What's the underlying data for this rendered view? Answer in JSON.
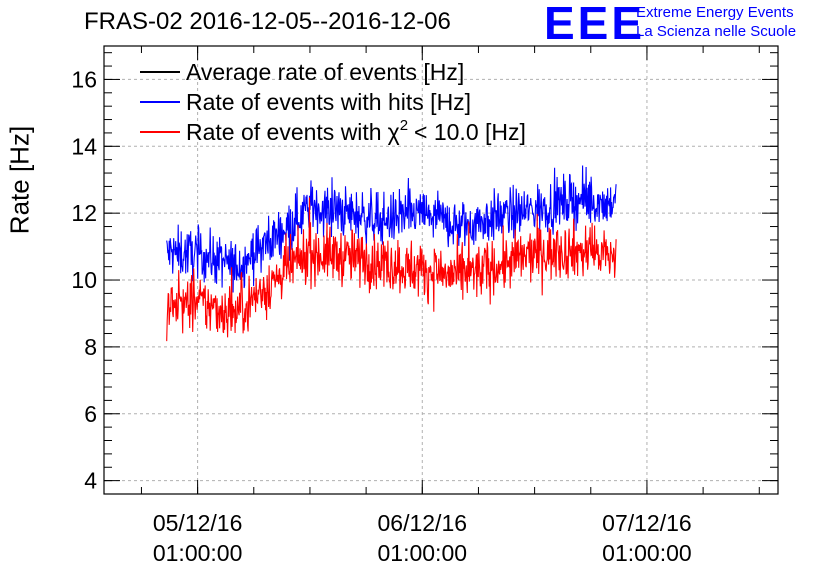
{
  "header": {
    "title": "FRAS-02 2016-12-05--2016-12-06",
    "logo_text": "EEE",
    "org_line1": "Extreme Energy Events",
    "org_line2": "La Scienza nelle Scuole"
  },
  "colors": {
    "average": "#000000",
    "hits": "#0000ff",
    "chi2": "#ff0000",
    "grid": "#b0b0b0",
    "logo": "#0000ff"
  },
  "chart_data": {
    "type": "line",
    "title": "FRAS-02 2016-12-05--2016-12-06",
    "xlabel": "",
    "ylabel": "Rate [Hz]",
    "ylim": [
      3.6,
      17
    ],
    "yticks": [
      4,
      6,
      8,
      10,
      12,
      14,
      16
    ],
    "xlim_hours": [
      -10,
      62
    ],
    "xticks": [
      {
        "hour": 0,
        "label": "05/12/16",
        "label2": "01:00:00"
      },
      {
        "hour": 24,
        "label": "06/12/16",
        "label2": "01:00:00"
      },
      {
        "hour": 48,
        "label": "07/12/16",
        "label2": "01:00:00"
      }
    ],
    "grid": true,
    "legend_position": "top-left",
    "x_start_hour": -3.3,
    "x_end_hour": 44.7,
    "series": [
      {
        "name": "Average rate of events [Hz]",
        "legend_label": "Average rate of events [Hz]",
        "color": "#000000",
        "noise": 0,
        "x": [],
        "y": []
      },
      {
        "name": "Rate of events with hits [Hz]",
        "legend_label": "Rate of events with hits [Hz]",
        "color": "#0000ff",
        "noise": 0.38,
        "x": [
          -3.3,
          0,
          4,
          7,
          10,
          12,
          16,
          20,
          24,
          28,
          32,
          36,
          40,
          44.7
        ],
        "y": [
          10.8,
          10.8,
          10.4,
          11.0,
          11.7,
          12.2,
          12.0,
          11.8,
          12.0,
          11.6,
          11.9,
          12.1,
          12.4,
          12.3
        ]
      },
      {
        "name": "Rate of events with χ² < 10.0 [Hz]",
        "legend_label": "Rate of events with",
        "legend_chi": "χ",
        "legend_sup": "2",
        "legend_rest": "< 10.0 [Hz]",
        "color": "#ff0000",
        "noise": 0.42,
        "x": [
          -3.3,
          0,
          4,
          7,
          10,
          12,
          16,
          20,
          24,
          28,
          32,
          36,
          40,
          44.7
        ],
        "y": [
          9.2,
          9.3,
          9.0,
          9.7,
          10.4,
          10.8,
          10.7,
          10.5,
          10.3,
          10.1,
          10.4,
          10.8,
          10.9,
          10.7
        ]
      }
    ]
  }
}
